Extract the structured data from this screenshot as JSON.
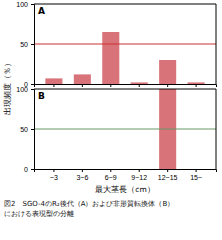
{
  "chart_data": [
    {
      "type": "bar",
      "title": "A",
      "categories": [
        "~3",
        "3~6",
        "6~9",
        "9~12",
        "12~15",
        "15~"
      ],
      "values": [
        7,
        12,
        65,
        2,
        30,
        2
      ],
      "color": "#d9737a",
      "ylim": [
        0,
        100
      ],
      "yticks": [
        0,
        50,
        100
      ],
      "ylabel": "出現頻度（％）",
      "reference_lines": [
        {
          "value": 50,
          "color": "#cc3333"
        }
      ],
      "tick_labels": "y"
    },
    {
      "type": "bar",
      "title": "B",
      "categories": [
        "~3",
        "3~6",
        "6~9",
        "9~12",
        "12~15",
        "15~"
      ],
      "values": [
        0,
        0,
        0,
        0,
        100,
        0
      ],
      "color": "#d9737a",
      "ylim": [
        0,
        100
      ],
      "yticks": [
        0,
        50,
        100
      ],
      "xlabel": "最大茎長（cm）",
      "reference_lines": [
        {
          "value": 50,
          "color": "#669966"
        }
      ],
      "annotations": [
        "図2　SGO-4のR₂後代（A）および非形質転換体（B）",
        "における表現型の分離"
      ]
    }
  ]
}
